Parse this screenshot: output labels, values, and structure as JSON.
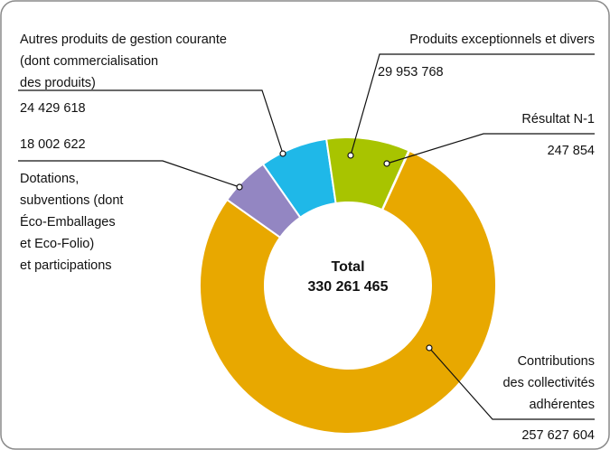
{
  "chart_data": {
    "type": "donut",
    "categories": [
      [
        "Autres produits de gestion courante",
        "(dont commercialisation",
        "des produits)"
      ],
      [
        "Produits exceptionnels et divers"
      ],
      [
        "Résultat N-1"
      ],
      [
        "Contributions",
        "des collectivités",
        "adhérentes"
      ],
      [
        "Dotations,",
        "subventions (dont",
        "Éco-Emballages",
        "et Eco-Folio)",
        "et participations"
      ]
    ],
    "values": [
      24429618,
      29953768,
      247854,
      257627604,
      18002622
    ],
    "value_labels": [
      "24 429 618",
      "29 953 768",
      "247 854",
      "257 627 604",
      "18 002 622"
    ],
    "colors": [
      "#1fb8e8",
      "#a8c400",
      "#d2461e",
      "#e8a800",
      "#9386c2"
    ],
    "total": {
      "label": "Total",
      "value": 330261465,
      "value_label": "330 261 465"
    }
  }
}
